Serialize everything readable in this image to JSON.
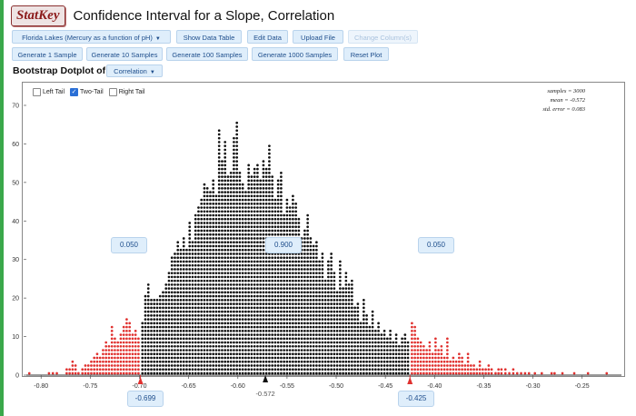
{
  "app": {
    "logo": "StatKey",
    "title": "Confidence Interval for a Slope, Correlation"
  },
  "toolbar1": {
    "dataset": "Florida Lakes (Mercury as a function of pH)",
    "show_data": "Show Data Table",
    "edit_data": "Edit Data",
    "upload_file": "Upload File",
    "change_columns": "Change Column(s)"
  },
  "toolbar2": {
    "gen1": "Generate 1 Sample",
    "gen10": "Generate 10 Samples",
    "gen100": "Generate 100 Samples",
    "gen1000": "Generate 1000 Samples",
    "reset": "Reset Plot"
  },
  "plot": {
    "label": "Bootstrap Dotplot of",
    "statistic": "Correlation",
    "tails": {
      "left": "Left Tail",
      "two": "Two-Tail",
      "right": "Right Tail",
      "selected": "two"
    },
    "stats": {
      "samples": "samples = 3000",
      "mean": "mean = -0.572",
      "se": "std. error = 0.083"
    },
    "proportions": {
      "left": "0.050",
      "middle": "0.900",
      "right": "0.050"
    },
    "bounds": {
      "lower": "-0.699",
      "upper": "-0.425"
    },
    "center_label": "-0.572"
  },
  "chart_data": {
    "type": "scatter",
    "subtype": "dotplot",
    "x_ticks": [
      "-0.80",
      "-0.75",
      "-0.70",
      "-0.65",
      "-0.60",
      "-0.55",
      "-0.50",
      "-0.45",
      "-0.40",
      "-0.35",
      "-0.30",
      "-0.25"
    ],
    "xlim": [
      -0.815,
      -0.21
    ],
    "y_ticks": [
      "0",
      "10",
      "20",
      "30",
      "40",
      "50",
      "60",
      "70"
    ],
    "ylim": [
      0,
      70
    ],
    "colors": {
      "tail": "#e0312f",
      "body": "#111111"
    },
    "lower_cut": -0.699,
    "upper_cut": -0.425,
    "bin_width": 0.0025,
    "counts": [
      {
        "x": -0.812,
        "n": 1
      },
      {
        "x": -0.792,
        "n": 1
      },
      {
        "x": -0.788,
        "n": 1
      },
      {
        "x": -0.784,
        "n": 1
      },
      {
        "x": -0.774,
        "n": 2
      },
      {
        "x": -0.771,
        "n": 2
      },
      {
        "x": -0.768,
        "n": 4
      },
      {
        "x": -0.765,
        "n": 3
      },
      {
        "x": -0.762,
        "n": 1
      },
      {
        "x": -0.758,
        "n": 2
      },
      {
        "x": -0.755,
        "n": 3
      },
      {
        "x": -0.752,
        "n": 3
      },
      {
        "x": -0.749,
        "n": 4
      },
      {
        "x": -0.746,
        "n": 5
      },
      {
        "x": -0.743,
        "n": 6
      },
      {
        "x": -0.74,
        "n": 5
      },
      {
        "x": -0.737,
        "n": 7
      },
      {
        "x": -0.734,
        "n": 9
      },
      {
        "x": -0.731,
        "n": 8
      },
      {
        "x": -0.728,
        "n": 13
      },
      {
        "x": -0.725,
        "n": 10
      },
      {
        "x": -0.722,
        "n": 9
      },
      {
        "x": -0.719,
        "n": 11
      },
      {
        "x": -0.716,
        "n": 13
      },
      {
        "x": -0.713,
        "n": 15
      },
      {
        "x": -0.71,
        "n": 14
      },
      {
        "x": -0.707,
        "n": 11
      },
      {
        "x": -0.704,
        "n": 12
      },
      {
        "x": -0.701,
        "n": 10
      },
      {
        "x": -0.697,
        "n": 14
      },
      {
        "x": -0.694,
        "n": 21
      },
      {
        "x": -0.691,
        "n": 24
      },
      {
        "x": -0.688,
        "n": 20
      },
      {
        "x": -0.685,
        "n": 20
      },
      {
        "x": -0.682,
        "n": 20
      },
      {
        "x": -0.679,
        "n": 21
      },
      {
        "x": -0.676,
        "n": 22
      },
      {
        "x": -0.673,
        "n": 24
      },
      {
        "x": -0.67,
        "n": 27
      },
      {
        "x": -0.667,
        "n": 31
      },
      {
        "x": -0.664,
        "n": 32
      },
      {
        "x": -0.661,
        "n": 35
      },
      {
        "x": -0.658,
        "n": 33
      },
      {
        "x": -0.655,
        "n": 36
      },
      {
        "x": -0.652,
        "n": 33
      },
      {
        "x": -0.649,
        "n": 40
      },
      {
        "x": -0.646,
        "n": 35
      },
      {
        "x": -0.643,
        "n": 42
      },
      {
        "x": -0.64,
        "n": 44
      },
      {
        "x": -0.637,
        "n": 46
      },
      {
        "x": -0.634,
        "n": 50
      },
      {
        "x": -0.631,
        "n": 49
      },
      {
        "x": -0.628,
        "n": 48
      },
      {
        "x": -0.625,
        "n": 51
      },
      {
        "x": -0.622,
        "n": 47
      },
      {
        "x": -0.619,
        "n": 64
      },
      {
        "x": -0.616,
        "n": 56
      },
      {
        "x": -0.613,
        "n": 61
      },
      {
        "x": -0.61,
        "n": 52
      },
      {
        "x": -0.607,
        "n": 53
      },
      {
        "x": -0.604,
        "n": 62
      },
      {
        "x": -0.601,
        "n": 66
      },
      {
        "x": -0.598,
        "n": 53
      },
      {
        "x": -0.595,
        "n": 50
      },
      {
        "x": -0.592,
        "n": 48
      },
      {
        "x": -0.589,
        "n": 55
      },
      {
        "x": -0.586,
        "n": 52
      },
      {
        "x": -0.583,
        "n": 54
      },
      {
        "x": -0.58,
        "n": 55
      },
      {
        "x": -0.577,
        "n": 51
      },
      {
        "x": -0.574,
        "n": 56
      },
      {
        "x": -0.571,
        "n": 54
      },
      {
        "x": -0.568,
        "n": 60
      },
      {
        "x": -0.565,
        "n": 52
      },
      {
        "x": -0.562,
        "n": 46
      },
      {
        "x": -0.559,
        "n": 51
      },
      {
        "x": -0.556,
        "n": 53
      },
      {
        "x": -0.553,
        "n": 42
      },
      {
        "x": -0.55,
        "n": 46
      },
      {
        "x": -0.547,
        "n": 44
      },
      {
        "x": -0.544,
        "n": 47
      },
      {
        "x": -0.541,
        "n": 45
      },
      {
        "x": -0.538,
        "n": 41
      },
      {
        "x": -0.535,
        "n": 36
      },
      {
        "x": -0.532,
        "n": 38
      },
      {
        "x": -0.529,
        "n": 42
      },
      {
        "x": -0.526,
        "n": 36
      },
      {
        "x": -0.523,
        "n": 34
      },
      {
        "x": -0.52,
        "n": 35
      },
      {
        "x": -0.517,
        "n": 30
      },
      {
        "x": -0.514,
        "n": 32
      },
      {
        "x": -0.511,
        "n": 25
      },
      {
        "x": -0.508,
        "n": 30
      },
      {
        "x": -0.505,
        "n": 32
      },
      {
        "x": -0.502,
        "n": 27
      },
      {
        "x": -0.499,
        "n": 22
      },
      {
        "x": -0.496,
        "n": 30
      },
      {
        "x": -0.493,
        "n": 23
      },
      {
        "x": -0.49,
        "n": 27
      },
      {
        "x": -0.487,
        "n": 24
      },
      {
        "x": -0.484,
        "n": 25
      },
      {
        "x": -0.481,
        "n": 18
      },
      {
        "x": -0.478,
        "n": 19
      },
      {
        "x": -0.475,
        "n": 14
      },
      {
        "x": -0.472,
        "n": 20
      },
      {
        "x": -0.469,
        "n": 16
      },
      {
        "x": -0.466,
        "n": 13
      },
      {
        "x": -0.463,
        "n": 17
      },
      {
        "x": -0.46,
        "n": 12
      },
      {
        "x": -0.457,
        "n": 14
      },
      {
        "x": -0.454,
        "n": 11
      },
      {
        "x": -0.451,
        "n": 12
      },
      {
        "x": -0.448,
        "n": 10
      },
      {
        "x": -0.445,
        "n": 12
      },
      {
        "x": -0.442,
        "n": 9
      },
      {
        "x": -0.439,
        "n": 11
      },
      {
        "x": -0.436,
        "n": 8
      },
      {
        "x": -0.433,
        "n": 10
      },
      {
        "x": -0.43,
        "n": 11
      },
      {
        "x": -0.427,
        "n": 9
      },
      {
        "x": -0.423,
        "n": 14
      },
      {
        "x": -0.42,
        "n": 13
      },
      {
        "x": -0.417,
        "n": 10
      },
      {
        "x": -0.414,
        "n": 9
      },
      {
        "x": -0.411,
        "n": 8
      },
      {
        "x": -0.408,
        "n": 7
      },
      {
        "x": -0.405,
        "n": 9
      },
      {
        "x": -0.402,
        "n": 6
      },
      {
        "x": -0.399,
        "n": 10
      },
      {
        "x": -0.396,
        "n": 7
      },
      {
        "x": -0.393,
        "n": 8
      },
      {
        "x": -0.39,
        "n": 5
      },
      {
        "x": -0.387,
        "n": 10
      },
      {
        "x": -0.384,
        "n": 4
      },
      {
        "x": -0.381,
        "n": 5
      },
      {
        "x": -0.378,
        "n": 4
      },
      {
        "x": -0.375,
        "n": 6
      },
      {
        "x": -0.372,
        "n": 5
      },
      {
        "x": -0.369,
        "n": 3
      },
      {
        "x": -0.366,
        "n": 6
      },
      {
        "x": -0.363,
        "n": 3
      },
      {
        "x": -0.36,
        "n": 3
      },
      {
        "x": -0.357,
        "n": 2
      },
      {
        "x": -0.354,
        "n": 4
      },
      {
        "x": -0.351,
        "n": 2
      },
      {
        "x": -0.348,
        "n": 2
      },
      {
        "x": -0.345,
        "n": 3
      },
      {
        "x": -0.342,
        "n": 2
      },
      {
        "x": -0.338,
        "n": 1
      },
      {
        "x": -0.335,
        "n": 2
      },
      {
        "x": -0.332,
        "n": 2
      },
      {
        "x": -0.328,
        "n": 2
      },
      {
        "x": -0.324,
        "n": 1
      },
      {
        "x": -0.32,
        "n": 2
      },
      {
        "x": -0.316,
        "n": 1
      },
      {
        "x": -0.312,
        "n": 1
      },
      {
        "x": -0.308,
        "n": 1
      },
      {
        "x": -0.304,
        "n": 1
      },
      {
        "x": -0.298,
        "n": 1
      },
      {
        "x": -0.291,
        "n": 1
      },
      {
        "x": -0.281,
        "n": 1
      },
      {
        "x": -0.278,
        "n": 1
      },
      {
        "x": -0.27,
        "n": 1
      },
      {
        "x": -0.258,
        "n": 1
      },
      {
        "x": -0.244,
        "n": 1
      },
      {
        "x": -0.225,
        "n": 1
      }
    ]
  }
}
